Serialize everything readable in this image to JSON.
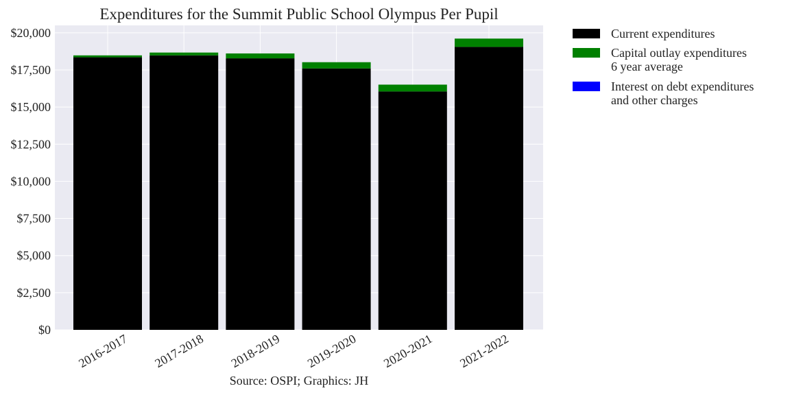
{
  "chart_data": {
    "type": "bar",
    "stacked": true,
    "title": "Expenditures for the Summit Public School Olympus Per Pupil",
    "xlabel": "Source: OSPI; Graphics: JH",
    "ylabel": "",
    "categories": [
      "2016-2017",
      "2017-2018",
      "2018-2019",
      "2019-2020",
      "2020-2021",
      "2021-2022"
    ],
    "series": [
      {
        "name": "Current expenditures",
        "color": "#000000",
        "values": [
          18350,
          18480,
          18280,
          17600,
          16050,
          19050
        ]
      },
      {
        "name": "Capital outlay expenditures\n6 year average",
        "color": "#008000",
        "values": [
          130,
          190,
          330,
          420,
          460,
          560
        ]
      },
      {
        "name": "Interest on debt expenditures\nand other charges",
        "color": "#0000ff",
        "values": [
          0,
          0,
          0,
          0,
          0,
          0
        ]
      }
    ],
    "ylim": [
      0,
      20500
    ],
    "yticks": [
      0,
      2500,
      5000,
      7500,
      10000,
      12500,
      15000,
      17500,
      20000
    ],
    "ytick_labels": [
      "$0",
      "$2,500",
      "$5,000",
      "$7,500",
      "$10,000",
      "$12,500",
      "$15,000",
      "$17,500",
      "$20,000"
    ],
    "grid": true,
    "legend_position": "outside-right",
    "background": "#eaeaf2",
    "gridline_color": "#ffffff"
  }
}
